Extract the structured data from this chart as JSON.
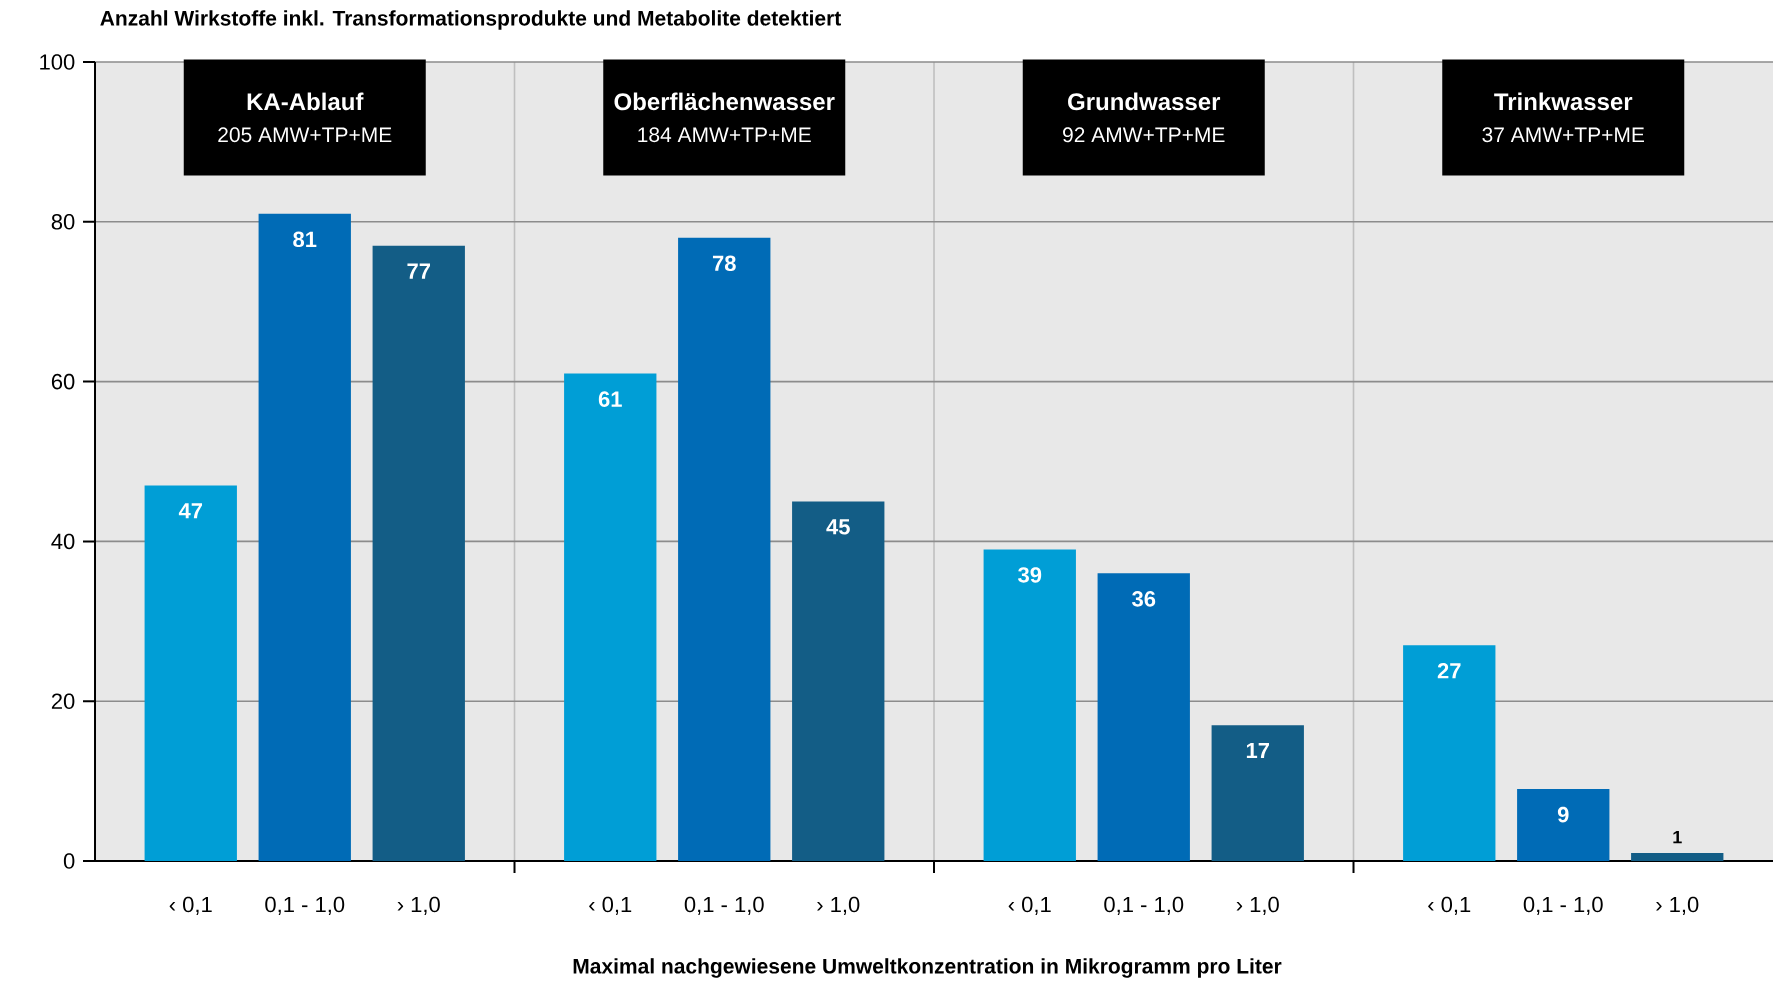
{
  "chart_data": {
    "type": "bar",
    "title": "Anzahl Wirkstoffe inkl. Transformationsprodukte und Metabolite detektiert",
    "xlabel": "Maximal nachgewiesene Umweltkonzentration in Mikrogramm pro Liter",
    "categories": [
      "‹ 0,1",
      "0,1 - 1,0",
      "› 1,0",
      "‹ 0,1",
      "0,1 - 1,0",
      "› 1,0",
      "‹ 0,1",
      "0,1 - 1,0",
      "› 1,0",
      "‹ 0,1",
      "0,1 - 1,0",
      "› 1,0"
    ],
    "values": [
      47,
      81,
      77,
      61,
      78,
      45,
      39,
      36,
      17,
      27,
      9,
      1
    ],
    "colors": [
      "#009ed6",
      "#006bb6",
      "#135d86",
      "#009ed6",
      "#006bb6",
      "#135d86",
      "#009ed6",
      "#006bb6",
      "#135d86",
      "#009ed6",
      "#006bb6",
      "#135d86"
    ],
    "annotations": [
      "KA-Ablauf",
      "205 AMW+TP+ME",
      "Oberflächenwasser",
      "184 AMW+TP+ME",
      "Grundwasser",
      "92 AMW+TP+ME",
      "Trinkwasser",
      "37 AMW+TP+ME"
    ],
    "data_labels": true,
    "ylim": [
      0,
      100
    ],
    "yticks": [
      0,
      20,
      40,
      60,
      80,
      100
    ],
    "grid": true
  }
}
